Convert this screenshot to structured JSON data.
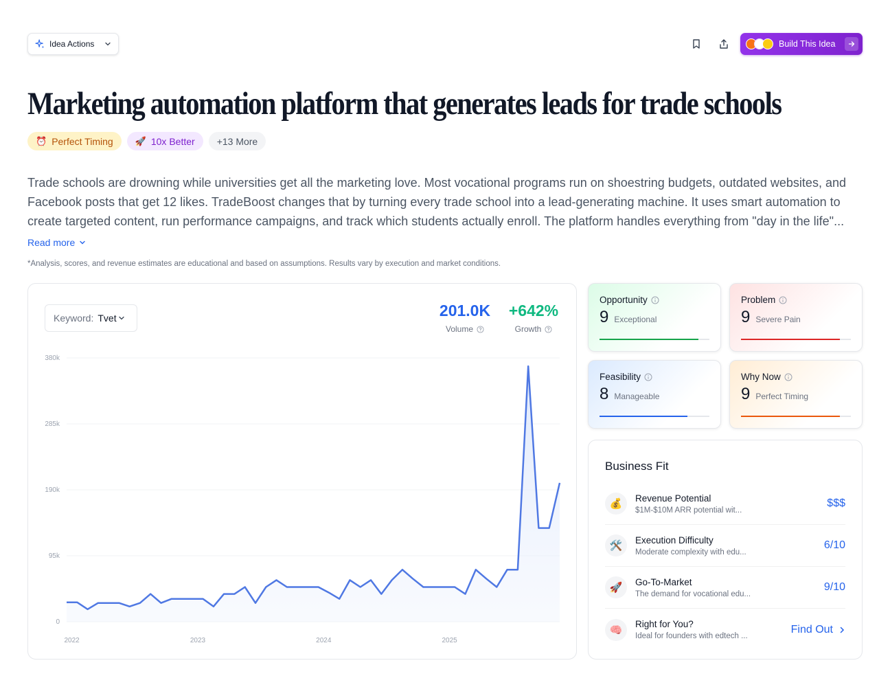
{
  "toolbar": {
    "idea_actions_label": "Idea Actions",
    "build_label": "Build This Idea"
  },
  "title": "Marketing automation platform that generates leads for trade schools",
  "tags": [
    {
      "emoji": "⏰",
      "label": "Perfect Timing"
    },
    {
      "emoji": "🚀",
      "label": "10x Better"
    },
    {
      "label": "+13 More"
    }
  ],
  "description": "Trade schools are drowning while universities get all the marketing love. Most vocational programs run on shoestring budgets, outdated websites, and Facebook posts that get 12 likes. TradeBoost changes that by turning every trade school into a lead-generating machine. It uses smart automation to create targeted content, run performance campaigns, and track which students actually enroll. The platform handles everything from \"day in the life\"...",
  "read_more": "Read more",
  "disclaimer": "*Analysis, scores, and revenue estimates are educational and based on assumptions. Results vary by execution and market conditions.",
  "keyword": {
    "label": "Keyword:",
    "value": "Tvet"
  },
  "stats": {
    "volume": {
      "value": "201.0K",
      "label": "Volume"
    },
    "growth": {
      "value": "+642%",
      "label": "Growth"
    }
  },
  "colors": {
    "accent_blue": "#2563eb",
    "growth_green": "#10b981",
    "line": "#4f78e3",
    "purple": "#9333ea"
  },
  "chart_data": {
    "type": "area",
    "ylim": [
      0,
      380000
    ],
    "y_ticks": [
      "380k",
      "285k",
      "190k",
      "95k",
      "0"
    ],
    "x_ticks": [
      "2022",
      "2023",
      "2024",
      "2025"
    ],
    "x_tick_positions": [
      0.5,
      12.5,
      24.5,
      36.5
    ],
    "values": [
      28000,
      28000,
      18000,
      27000,
      27000,
      27000,
      22000,
      27000,
      40000,
      27000,
      33000,
      33000,
      33000,
      33000,
      22000,
      40000,
      40000,
      50000,
      27000,
      50000,
      60000,
      50000,
      50000,
      50000,
      50000,
      42000,
      33000,
      60000,
      50000,
      60000,
      40000,
      60000,
      75000,
      62000,
      50000,
      50000,
      50000,
      50000,
      40000,
      75000,
      62000,
      50000,
      75000,
      75000,
      368000,
      135000,
      135000,
      200000
    ]
  },
  "scores": [
    {
      "label": "Opportunity",
      "value": "9",
      "sub": "Exceptional",
      "color": "#16a34a",
      "fill": 0.9
    },
    {
      "label": "Problem",
      "value": "9",
      "sub": "Severe Pain",
      "color": "#dc2626",
      "fill": 0.9
    },
    {
      "label": "Feasibility",
      "value": "8",
      "sub": "Manageable",
      "color": "#2563eb",
      "fill": 0.8
    },
    {
      "label": "Why Now",
      "value": "9",
      "sub": "Perfect Timing",
      "color": "#ea580c",
      "fill": 0.9
    }
  ],
  "business_fit": {
    "title": "Business Fit",
    "items": [
      {
        "icon": "💰",
        "title": "Revenue Potential",
        "sub": "$1M-$10M ARR potential wit...",
        "value": "$$$"
      },
      {
        "icon": "🛠️",
        "title": "Execution Difficulty",
        "sub": "Moderate complexity with edu...",
        "value": "6/10"
      },
      {
        "icon": "🚀",
        "title": "Go-To-Market",
        "sub": "The demand for vocational edu...",
        "value": "9/10"
      },
      {
        "icon": "🧠",
        "title": "Right for You?",
        "sub": "Ideal for founders with edtech ...",
        "value": "Find Out"
      }
    ]
  }
}
